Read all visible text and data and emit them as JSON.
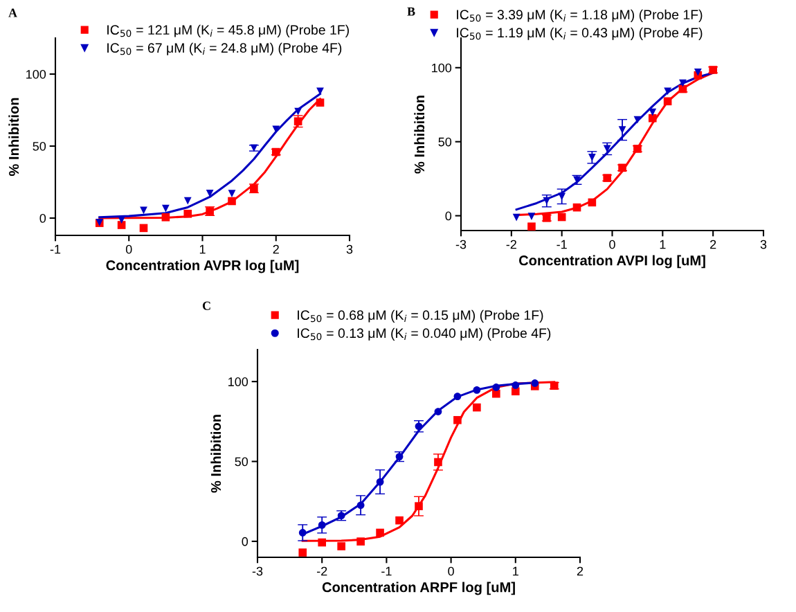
{
  "chart_data": [
    {
      "type": "scatter",
      "xlabel": "Concentration AVPR log [uM]",
      "ylabel": "% Inhibition",
      "xlim": [
        -1,
        3
      ],
      "ylim": [
        -12,
        125
      ],
      "xticks": [
        -1,
        0,
        1,
        2,
        3
      ],
      "yticks": [
        0,
        50,
        100
      ],
      "grid": false,
      "legend": "top",
      "annotations": [
        "A"
      ],
      "series": [
        {
          "name": "IC$_{50}$ = 121 μM (K$_{i}$ = 45.8 μM) (Probe 1F)",
          "type": "scatter",
          "marker": "square",
          "color": "#ff0000",
          "x": [
            -0.4,
            -0.1,
            0.2,
            0.5,
            0.8,
            1.1,
            1.4,
            1.7,
            2.0,
            2.3,
            2.6
          ],
          "values": [
            -3.4,
            -4.8,
            -6.9,
            0.6,
            3,
            4.8,
            11.8,
            20.6,
            45.9,
            67.2,
            80.2
          ],
          "errors": [
            null,
            null,
            null,
            null,
            null,
            3,
            null,
            3,
            2,
            4,
            null
          ]
        },
        {
          "name": "IC$_{50}$ = 67 μM (K$_{i}$ = 24.8 μM) (Probe 4F)",
          "type": "scatter",
          "marker": "triangle",
          "color": "#0000c0",
          "x": [
            -0.4,
            -0.1,
            0.2,
            0.5,
            0.8,
            1.1,
            1.4,
            1.7,
            2.0,
            2.3,
            2.6
          ],
          "values": [
            -3,
            -1.3,
            5.4,
            6.7,
            12,
            17.1,
            17,
            48.6,
            61.6,
            74,
            88
          ],
          "errors": [
            null,
            null,
            null,
            null,
            null,
            null,
            null,
            2,
            null,
            null,
            null
          ]
        },
        {
          "type": "line",
          "color": "#ff0000",
          "x": [
            -0.4,
            0.5,
            0.8,
            1.0,
            1.2,
            1.4,
            1.7,
            1.85,
            2.0,
            2.15,
            2.3,
            2.45,
            2.6
          ],
          "values": [
            0,
            0.3,
            1.1,
            2.7,
            6.7,
            11.5,
            23.5,
            32,
            42.7,
            54,
            65,
            75,
            82.7
          ]
        },
        {
          "type": "line",
          "color": "#0000c0",
          "x": [
            -0.4,
            0.0,
            0.5,
            0.8,
            1.1,
            1.4,
            1.55,
            1.7,
            1.85,
            2.0,
            2.15,
            2.3,
            2.6
          ],
          "values": [
            0.6,
            1.4,
            3.5,
            7.5,
            14.7,
            26,
            33,
            41,
            50.6,
            60,
            68,
            75.5,
            86.2
          ]
        }
      ]
    },
    {
      "type": "scatter",
      "xlabel": "Concentration AVPI log [uM]",
      "ylabel": "% Inhibition",
      "xlim": [
        -3,
        3
      ],
      "ylim": [
        -10,
        120
      ],
      "xticks": [
        -3,
        -2,
        -1,
        0,
        1,
        2,
        3
      ],
      "yticks": [
        0,
        50,
        100
      ],
      "grid": false,
      "legend": "top",
      "annotations": [
        "B"
      ],
      "series": [
        {
          "name": "IC$_{50}$ = 3.39 μM (K$_{i}$ = 1.18 μM) (Probe 1F)",
          "type": "scatter",
          "marker": "square",
          "color": "#ff0000",
          "x": [
            -1.6,
            -1.3,
            -1.0,
            -0.7,
            -0.4,
            -0.1,
            0.2,
            0.5,
            0.8,
            1.1,
            1.4,
            1.7,
            2.0
          ],
          "values": [
            -7.3,
            -1.5,
            -0.9,
            5.6,
            9,
            25.5,
            32.4,
            45.2,
            65.9,
            77.3,
            85.6,
            94.9,
            98.5
          ],
          "errors": [
            null,
            2,
            null,
            null,
            null,
            2,
            2,
            2,
            null,
            null,
            2,
            null,
            2
          ]
        },
        {
          "name": "IC$_{50}$ = 1.19 μM (K$_{i}$ = 0.43 μM) (Probe 4F)",
          "type": "scatter",
          "marker": "triangle",
          "color": "#0000c0",
          "x": [
            -1.9,
            -1.6,
            -1.3,
            -1.0,
            -0.7,
            -0.4,
            -0.1,
            0.2,
            0.5,
            0.8,
            1.1,
            1.4,
            1.7
          ],
          "values": [
            -1.2,
            -0.5,
            10,
            13,
            24.2,
            39.4,
            45.2,
            58,
            64.8,
            69.9,
            84,
            89.5,
            96.9
          ],
          "errors": [
            null,
            null,
            4,
            5,
            3,
            4,
            4,
            7,
            null,
            null,
            null,
            null,
            null
          ]
        },
        {
          "type": "line",
          "color": "#ff0000",
          "x": [
            -1.9,
            -1.5,
            -1.0,
            -0.7,
            -0.4,
            -0.1,
            0.2,
            0.5,
            0.8,
            1.1,
            1.4,
            1.7,
            2.0
          ],
          "values": [
            0.5,
            1.1,
            2.6,
            5.4,
            10,
            18,
            30,
            45.5,
            62.5,
            77.2,
            86,
            92.1,
            96.5
          ]
        },
        {
          "type": "line",
          "color": "#0000c0",
          "x": [
            -1.9,
            -1.5,
            -1.0,
            -0.7,
            -0.4,
            -0.1,
            0.2,
            0.5,
            0.8,
            1.1,
            1.4,
            1.7,
            2.0
          ],
          "values": [
            4.2,
            8.5,
            15.4,
            22.7,
            32.4,
            42.4,
            53.2,
            64,
            74,
            83.3,
            89.5,
            93.7,
            96.5
          ]
        }
      ]
    },
    {
      "type": "scatter",
      "xlabel": "Concentration ARPF log [uM]",
      "ylabel": "% Inhibition",
      "xlim": [
        -3,
        2
      ],
      "ylim": [
        -10,
        120
      ],
      "xticks": [
        -3,
        -2,
        -1,
        0,
        1,
        2
      ],
      "yticks": [
        0,
        50,
        100
      ],
      "grid": false,
      "legend": "top",
      "annotations": [
        "C"
      ],
      "series": [
        {
          "name": "IC$_{50}$ = 0.68 μM (K$_{i}$ = 0.15 μM) (Probe 1F)",
          "type": "scatter",
          "marker": "square",
          "color": "#ff0000",
          "x": [
            -2.3,
            -2.0,
            -1.7,
            -1.4,
            -1.1,
            -0.8,
            -0.5,
            -0.2,
            0.1,
            0.4,
            0.7,
            1.0,
            1.3,
            1.6
          ],
          "values": [
            -7,
            -0.7,
            -3.1,
            -0.1,
            5.4,
            13.1,
            22,
            49.6,
            75.9,
            83.8,
            92.4,
            93.9,
            97.1,
            97.4
          ],
          "errors": [
            null,
            null,
            null,
            null,
            null,
            null,
            6,
            5,
            null,
            null,
            null,
            null,
            null,
            2
          ]
        },
        {
          "name": "IC$_{50}$ = 0.13 μM (K$_{i}$ = 0.040 μM) (Probe 4F)",
          "type": "scatter",
          "marker": "circle",
          "color": "#0000c0",
          "x": [
            -2.3,
            -2.0,
            -1.7,
            -1.4,
            -1.1,
            -0.8,
            -0.5,
            -0.2,
            0.1,
            0.4,
            0.7,
            1.0,
            1.3
          ],
          "values": [
            5.4,
            10.2,
            16.1,
            22.6,
            37.2,
            53,
            72,
            81.2,
            90.7,
            94.7,
            96.4,
            97.7,
            99
          ],
          "errors": [
            5,
            5,
            3,
            6,
            7.5,
            3,
            3.5,
            null,
            null,
            null,
            null,
            null,
            null
          ]
        },
        {
          "type": "line",
          "color": "#ff0000",
          "x": [
            -2.3,
            -1.7,
            -1.4,
            -1.1,
            -0.8,
            -0.6,
            -0.4,
            -0.2,
            0.0,
            0.2,
            0.4,
            0.7,
            1.0,
            1.6
          ],
          "values": [
            0.3,
            0.4,
            1,
            2.9,
            8.8,
            16,
            28.5,
            46,
            65,
            81,
            89.8,
            96.4,
            98.8,
            99.7
          ]
        },
        {
          "type": "line",
          "color": "#0000c0",
          "x": [
            -2.3,
            -2.0,
            -1.7,
            -1.4,
            -1.1,
            -0.8,
            -0.5,
            -0.2,
            0.1,
            0.4,
            0.7,
            1.0,
            1.3
          ],
          "values": [
            4.4,
            9.5,
            15.3,
            23.4,
            37.2,
            52.6,
            69.3,
            81.8,
            90.5,
            94.9,
            97.4,
            98.5,
            99.3
          ]
        }
      ]
    }
  ]
}
